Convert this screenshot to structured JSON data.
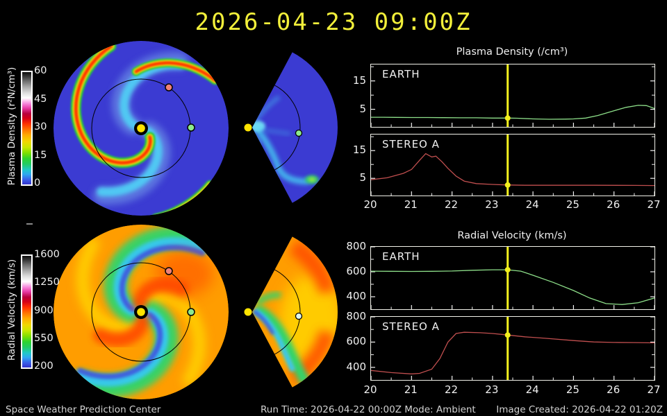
{
  "title": "2026-04-23 09:00Z",
  "colorbars": {
    "density": {
      "label": "Plasma Density (r²N/cm³)",
      "ticks": [
        "60",
        "45",
        "30",
        "15",
        "0"
      ]
    },
    "velocity": {
      "label": "Radial Velocity (km/s)",
      "ticks": [
        "1600",
        "1250",
        "900",
        "550",
        "200"
      ]
    }
  },
  "footer": {
    "left": "Space Weather Prediction Center",
    "center": "Run Time: 2026-04-22 00:00Z  Mode: Ambient",
    "right": "Image Created: 2026-04-22 01:20Z"
  },
  "map_colors": {
    "sun": "#ffe400",
    "earth_dot": "#8de98d",
    "stereo_a_dot": "#ef8277",
    "density_background": "#3b3bd2",
    "velocity_background": "#ff9d00"
  },
  "chart_data": [
    {
      "id": "density",
      "type": "line",
      "title": "Plasma Density (/cm³)",
      "xlim": [
        20,
        27
      ],
      "xticks": [
        20,
        21,
        22,
        23,
        24,
        25,
        26,
        27
      ],
      "ylim": [
        -1.2,
        20.8
      ],
      "yticks_major": [
        5,
        15
      ],
      "yticks_minor": [
        10,
        20
      ],
      "marker_time": 23.375,
      "marker_color": "#f2ef1d",
      "panels": [
        {
          "label": "EARTH",
          "color": "#8ee08a",
          "marker_value": 1.9,
          "x": [
            20,
            20.3,
            20.6,
            21,
            21.4,
            21.8,
            22.2,
            22.6,
            23,
            23.375,
            23.6,
            24,
            24.4,
            24.8,
            25,
            25.3,
            25.6,
            26,
            26.3,
            26.6,
            26.8,
            27
          ],
          "values": [
            2.2,
            2.2,
            2.15,
            2.1,
            2.1,
            2.05,
            2.0,
            2.0,
            1.9,
            1.9,
            1.85,
            1.6,
            1.5,
            1.55,
            1.6,
            1.9,
            2.8,
            4.5,
            5.7,
            6.4,
            6.3,
            5.3
          ]
        },
        {
          "label": "STEREO A",
          "color": "#c14f4f",
          "marker_value": 2.6,
          "x": [
            20,
            20.4,
            20.8,
            21.0,
            21.2,
            21.35,
            21.5,
            21.6,
            21.75,
            21.9,
            22.1,
            22.3,
            22.6,
            23,
            23.375,
            23.8,
            24.5,
            25.5,
            26.5,
            27
          ],
          "values": [
            4.5,
            5.2,
            6.8,
            8.2,
            11.5,
            13.9,
            12.7,
            13.0,
            11.0,
            8.6,
            5.8,
            4.0,
            3.1,
            2.8,
            2.6,
            2.5,
            2.5,
            2.5,
            2.45,
            2.4
          ]
        }
      ]
    },
    {
      "id": "velocity",
      "type": "line",
      "title": "Radial Velocity (km/s)",
      "xlim": [
        20,
        27
      ],
      "xticks": [
        20,
        21,
        22,
        23,
        24,
        25,
        26,
        27
      ],
      "ylim": [
        300,
        800
      ],
      "yticks_major": [
        400,
        600,
        800
      ],
      "yticks_minor": [
        500,
        700
      ],
      "marker_time": 23.375,
      "marker_color": "#f2ef1d",
      "panels": [
        {
          "label": "EARTH",
          "color": "#8ee08a",
          "marker_value": 616,
          "x": [
            20,
            20.5,
            21,
            21.5,
            22,
            22.5,
            23,
            23.375,
            23.7,
            24,
            24.5,
            25,
            25.4,
            25.8,
            26.2,
            26.6,
            27
          ],
          "values": [
            605,
            604,
            603,
            604,
            606,
            612,
            616,
            616,
            605,
            572,
            515,
            450,
            390,
            345,
            338,
            352,
            390
          ]
        },
        {
          "label": "STEREO A",
          "color": "#c14f4f",
          "marker_value": 656,
          "x": [
            20,
            20.5,
            21,
            21.2,
            21.5,
            21.7,
            21.9,
            22.1,
            22.3,
            22.7,
            23,
            23.375,
            23.8,
            24.3,
            25,
            25.5,
            26,
            26.5,
            27
          ],
          "values": [
            375,
            358,
            348,
            352,
            385,
            470,
            600,
            668,
            678,
            674,
            668,
            656,
            642,
            630,
            612,
            601,
            597,
            596,
            594
          ]
        }
      ]
    }
  ]
}
